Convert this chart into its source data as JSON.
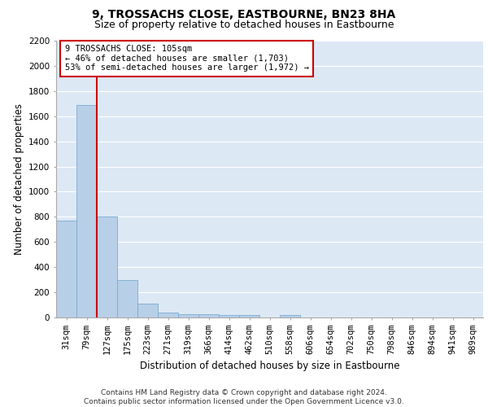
{
  "title": "9, TROSSACHS CLOSE, EASTBOURNE, BN23 8HA",
  "subtitle": "Size of property relative to detached houses in Eastbourne",
  "xlabel": "Distribution of detached houses by size in Eastbourne",
  "ylabel": "Number of detached properties",
  "categories": [
    "31sqm",
    "79sqm",
    "127sqm",
    "175sqm",
    "223sqm",
    "271sqm",
    "319sqm",
    "366sqm",
    "414sqm",
    "462sqm",
    "510sqm",
    "558sqm",
    "606sqm",
    "654sqm",
    "702sqm",
    "750sqm",
    "798sqm",
    "846sqm",
    "894sqm",
    "941sqm",
    "989sqm"
  ],
  "values": [
    770,
    1690,
    800,
    295,
    110,
    42,
    28,
    25,
    20,
    20,
    0,
    20,
    0,
    0,
    0,
    0,
    0,
    0,
    0,
    0,
    0
  ],
  "bar_color": "#b8cfe8",
  "bar_edge_color": "#7aaad0",
  "vline_color": "#cc0000",
  "annotation_text": "9 TROSSACHS CLOSE: 105sqm\n← 46% of detached houses are smaller (1,703)\n53% of semi-detached houses are larger (1,972) →",
  "annotation_box_color": "#ffffff",
  "annotation_box_edge": "#cc0000",
  "ylim": [
    0,
    2200
  ],
  "yticks": [
    0,
    200,
    400,
    600,
    800,
    1000,
    1200,
    1400,
    1600,
    1800,
    2000,
    2200
  ],
  "footer": "Contains HM Land Registry data © Crown copyright and database right 2024.\nContains public sector information licensed under the Open Government Licence v3.0.",
  "background_color": "#dde8f5",
  "grid_color": "#ffffff",
  "title_fontsize": 10,
  "subtitle_fontsize": 9,
  "axis_label_fontsize": 8.5,
  "tick_fontsize": 7.5,
  "annotation_fontsize": 7.5,
  "footer_fontsize": 6.5
}
